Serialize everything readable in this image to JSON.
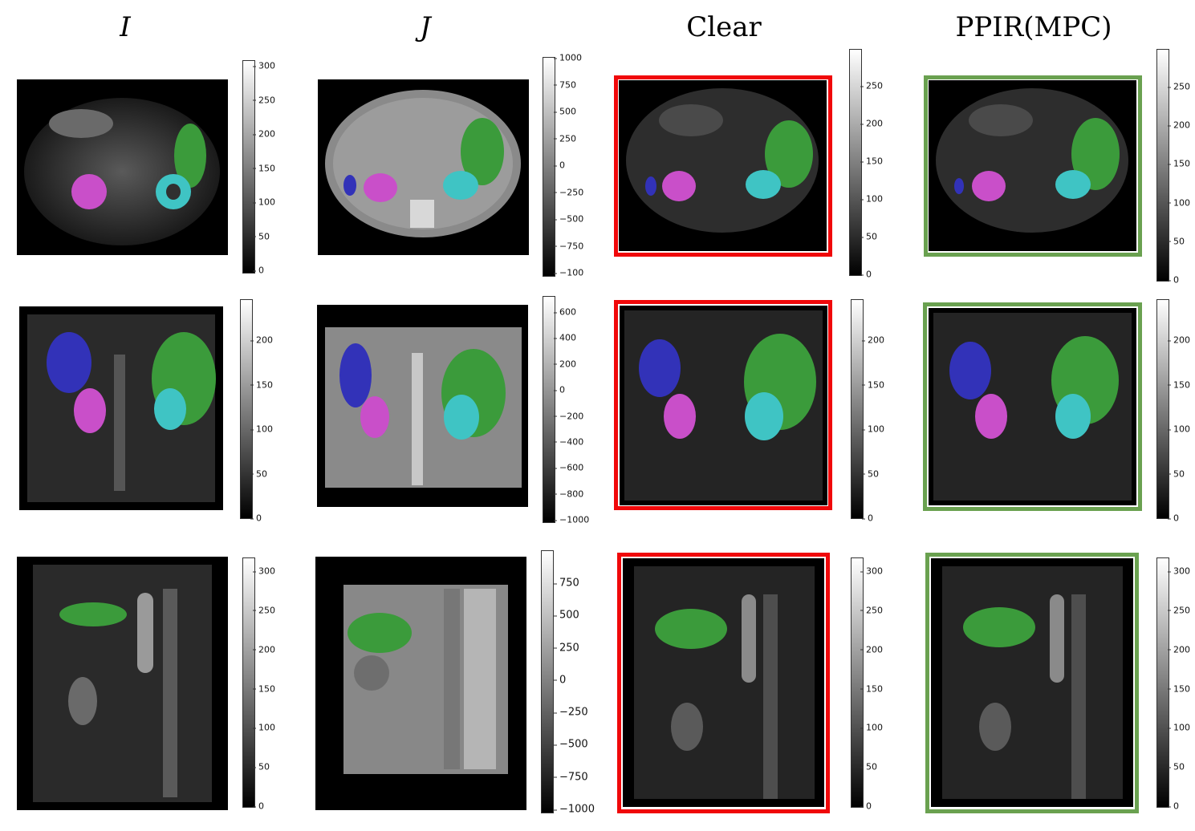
{
  "columns": [
    "I",
    "J",
    "Clear",
    "PPIR(MPC)"
  ],
  "colorbars": {
    "r0c0": [
      "300",
      "250",
      "200",
      "150",
      "100",
      "50",
      "0"
    ],
    "r0c1": [
      "1000",
      "750",
      "500",
      "250",
      "0",
      "−250",
      "−500",
      "−750",
      "−100"
    ],
    "r0c2": [
      "250",
      "200",
      "150",
      "100",
      "50",
      "0"
    ],
    "r0c3": [
      "250",
      "200",
      "150",
      "100",
      "50",
      "0"
    ],
    "r1c0": [
      "200",
      "150",
      "100",
      "50",
      "0"
    ],
    "r1c1": [
      "600",
      "400",
      "200",
      "0",
      "−200",
      "−400",
      "−600",
      "−800",
      "−1000"
    ],
    "r1c2": [
      "200",
      "150",
      "100",
      "50",
      "0"
    ],
    "r1c3": [
      "200",
      "150",
      "100",
      "50",
      "0"
    ],
    "r2c0": [
      "300",
      "250",
      "200",
      "150",
      "100",
      "50",
      "0"
    ],
    "r2c1": [
      "750",
      "500",
      "250",
      "0",
      "−250",
      "−500",
      "−750",
      "−1000"
    ],
    "r2c2": [
      "300",
      "250",
      "200",
      "150",
      "100",
      "50",
      "0"
    ],
    "r2c3": [
      "300",
      "250",
      "200",
      "150",
      "100",
      "50",
      "0"
    ]
  },
  "colors": {
    "liver": "#3b9b3b",
    "kidney_right": "#c94fc9",
    "kidney_left": "#3fc4c4",
    "spleen": "#3232b8",
    "clear_frame": "#f0080a",
    "ppir_frame": "#6aa150"
  }
}
